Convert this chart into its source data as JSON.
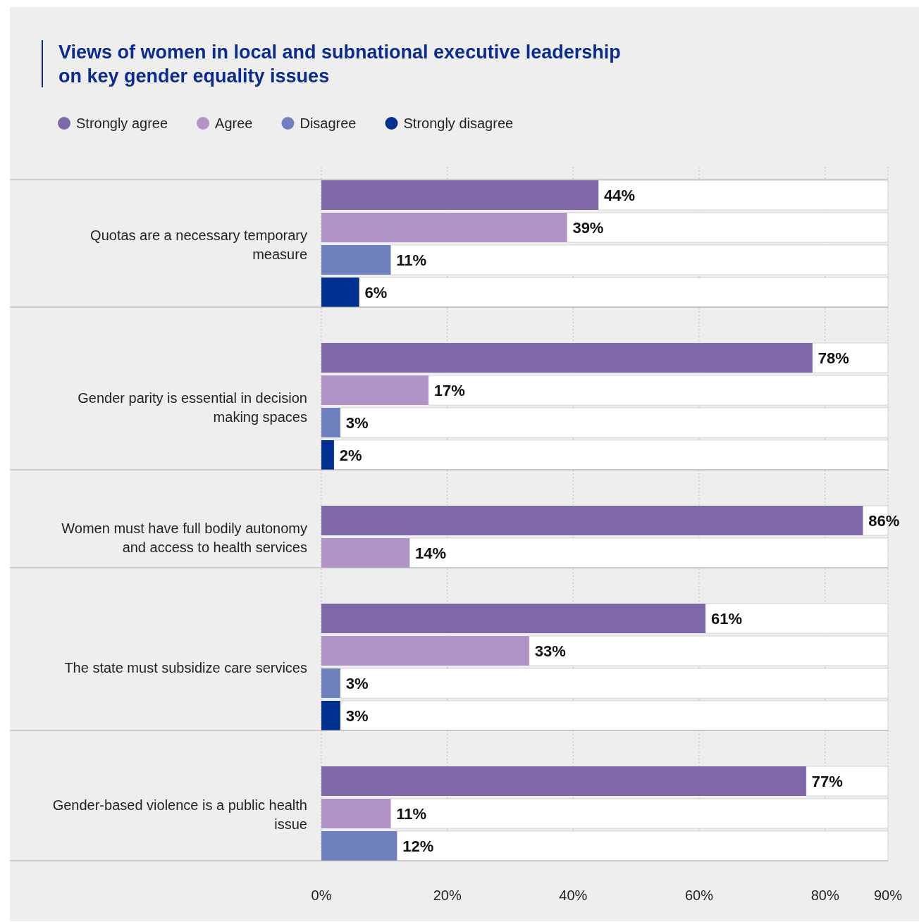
{
  "chart_data": {
    "type": "bar",
    "orientation": "horizontal",
    "title": "Views of women in local and subnational executive leadership on key gender equality issues",
    "categories": [
      "Quotas are a necessary temporary measure",
      "Gender parity is essential in decision making spaces",
      "Women must have full bodily autonomy and access to health services",
      "The state must subsidize care services",
      "Gender-based violence is a public health issue"
    ],
    "series": [
      {
        "name": "Strongly agree",
        "color": "#7f68a8",
        "values": [
          44,
          78,
          86,
          61,
          77
        ],
        "value_labels": [
          "44%",
          "78%",
          "86%",
          "61%",
          "77%"
        ]
      },
      {
        "name": "Agree",
        "color": "#b094c8",
        "values": [
          39,
          17,
          14,
          33,
          11
        ],
        "value_labels": [
          "39%",
          "17%",
          "14%",
          "33%",
          "11%"
        ]
      },
      {
        "name": "Disagree",
        "color": "#6f80bf",
        "values": [
          11,
          3,
          null,
          3,
          12
        ],
        "value_labels": [
          "11%",
          "3%",
          null,
          "3%",
          "12%"
        ]
      },
      {
        "name": "Strongly disagree",
        "color": "#00308f",
        "values": [
          6,
          2,
          null,
          3,
          null
        ],
        "value_labels": [
          "6%",
          "2%",
          null,
          "3%",
          null
        ]
      }
    ],
    "xlim": [
      0,
      90
    ],
    "xticks": [
      {
        "value": 0,
        "label": "0%"
      },
      {
        "value": 20,
        "label": "20%"
      },
      {
        "value": 40,
        "label": "40%"
      },
      {
        "value": 60,
        "label": "60%"
      },
      {
        "value": 80,
        "label": "80%"
      },
      {
        "value": 90,
        "label": "90%"
      }
    ],
    "grid": "x",
    "legend": "top left"
  }
}
